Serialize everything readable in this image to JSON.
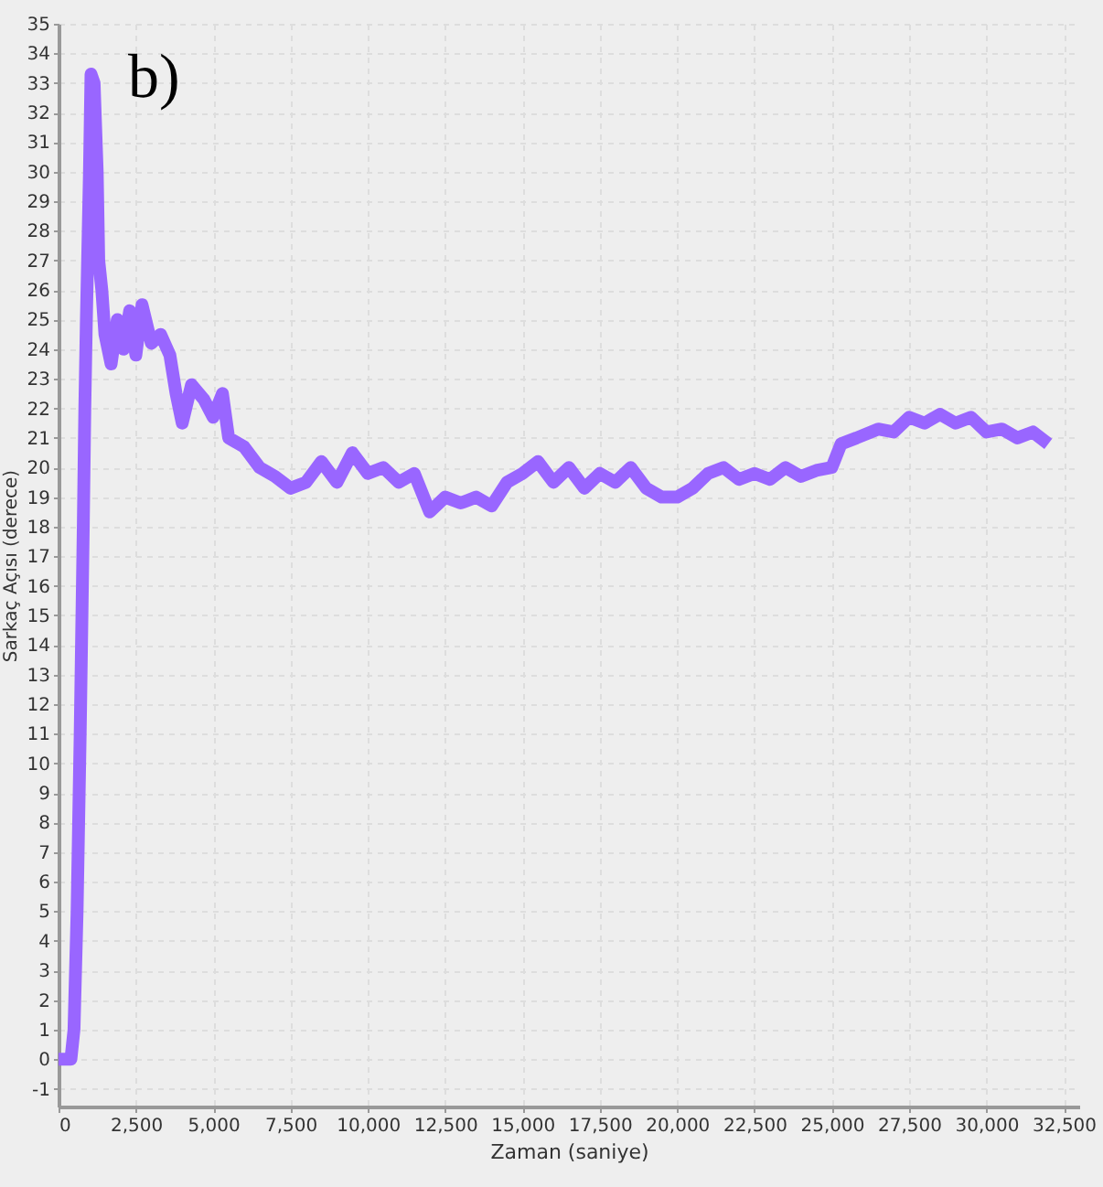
{
  "chart_data": {
    "type": "line",
    "xlabel": "Zaman (saniye)",
    "ylabel": "Sarkaç Açısı (derece)",
    "annotations": [
      "b)"
    ],
    "grid": true,
    "line_style": "solid",
    "xlim": [
      0,
      33000
    ],
    "ylim": [
      -1.6,
      35
    ],
    "xticks": [
      0,
      {
        "value": 2500,
        "label": "2,500"
      },
      {
        "value": 5000,
        "label": "5,000"
      },
      {
        "value": 7500,
        "label": "7,500"
      },
      {
        "value": 10000,
        "label": "10,000"
      },
      {
        "value": 12500,
        "label": "12,500"
      },
      {
        "value": 15000,
        "label": "15,000"
      },
      {
        "value": 17500,
        "label": "17,500"
      },
      {
        "value": 20000,
        "label": "20,000"
      },
      {
        "value": 22500,
        "label": "22,500"
      },
      {
        "value": 25000,
        "label": "25,000"
      },
      {
        "value": 27500,
        "label": "27,500"
      },
      {
        "value": 30000,
        "label": "30,000"
      },
      {
        "value": 32500,
        "label": "32,500"
      }
    ],
    "yticks": [
      -1,
      0,
      1,
      2,
      3,
      4,
      5,
      6,
      7,
      8,
      9,
      10,
      11,
      12,
      13,
      14,
      15,
      16,
      17,
      18,
      19,
      20,
      21,
      22,
      23,
      24,
      25,
      26,
      27,
      28,
      29,
      30,
      31,
      32,
      33,
      34,
      35
    ],
    "x": [
      0,
      400,
      500,
      600,
      700,
      800,
      850,
      900,
      1000,
      1050,
      1150,
      1250,
      1300,
      1400,
      1500,
      1700,
      1900,
      2100,
      2300,
      2500,
      2700,
      3000,
      3300,
      3600,
      3800,
      4000,
      4300,
      4700,
      5000,
      5300,
      5500,
      6000,
      6500,
      7000,
      7500,
      8000,
      8500,
      9000,
      9500,
      10000,
      10500,
      11000,
      11500,
      12000,
      12500,
      13000,
      13500,
      14000,
      14500,
      15000,
      15500,
      16000,
      16500,
      17000,
      17500,
      18000,
      18500,
      19000,
      19500,
      20000,
      20500,
      21000,
      21500,
      22000,
      22500,
      23000,
      23500,
      24000,
      24500,
      25000,
      25300,
      25800,
      26500,
      27000,
      27500,
      28000,
      28500,
      29000,
      29500,
      30000,
      30500,
      31000,
      31500,
      32000
    ],
    "series": [
      {
        "color": "#9966ff",
        "values": [
          0,
          0,
          1,
          5,
          11,
          18,
          22,
          25,
          30,
          33.3,
          33,
          30,
          27,
          26,
          24.5,
          23.5,
          25,
          24,
          25.3,
          23.8,
          25.5,
          24.2,
          24.5,
          23.8,
          22.5,
          21.5,
          22.8,
          22.3,
          21.7,
          22.5,
          21,
          20.7,
          20,
          19.7,
          19.3,
          19.5,
          20.2,
          19.5,
          20.5,
          19.8,
          20,
          19.5,
          19.8,
          18.5,
          19,
          18.8,
          19,
          18.7,
          19.5,
          19.8,
          20.2,
          19.5,
          20,
          19.3,
          19.8,
          19.5,
          20,
          19.3,
          19,
          19,
          19.3,
          19.8,
          20,
          19.6,
          19.8,
          19.6,
          20,
          19.7,
          19.9,
          20,
          20.8,
          21,
          21.3,
          21.2,
          21.7,
          21.5,
          21.8,
          21.5,
          21.7,
          21.2,
          21.3,
          21,
          21.2,
          20.8
        ]
      }
    ]
  }
}
